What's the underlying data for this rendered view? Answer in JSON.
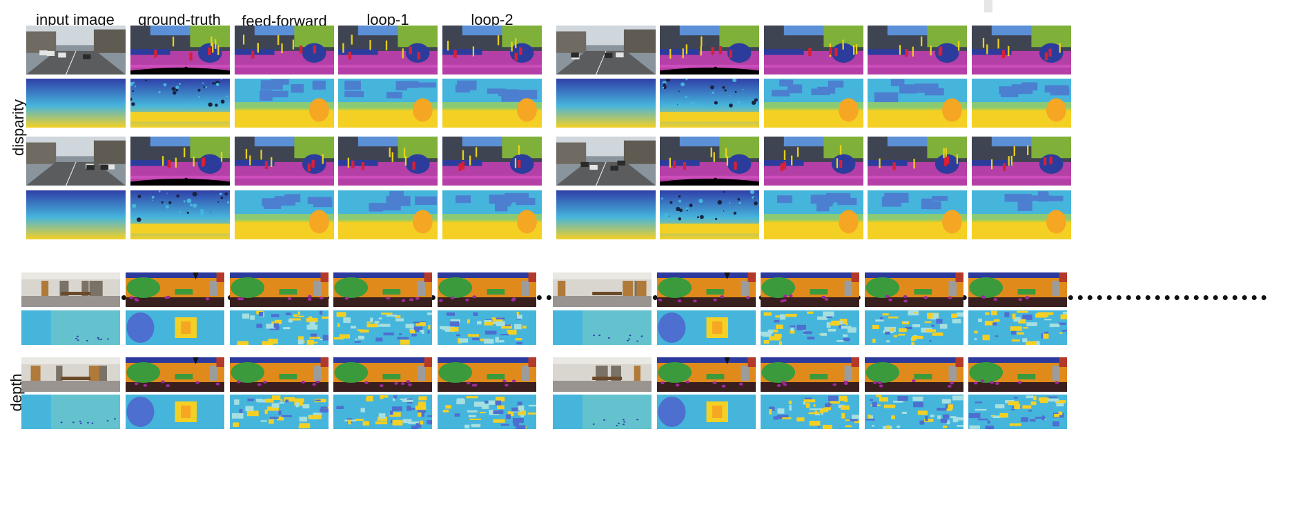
{
  "figure": {
    "top_columns": [
      "input image",
      "ground-truth",
      "feed-forward",
      "loop-1",
      "loop-2"
    ],
    "bottom_columns": [
      "input image",
      "ground-truth",
      "feed-forward",
      "loop-1",
      "loop-2"
    ],
    "top_row_label": "disparity",
    "bottom_row_label": "depth"
  },
  "palette": {
    "sky": "#5b8fd6",
    "vegetation": "#7fb03a",
    "road": "#b43fa6",
    "building": "#3f4452",
    "car": "#2c3c9c",
    "person": "#d82035",
    "sign": "#e8d11a",
    "sidewalk": "#e45bd0",
    "depth_far": "#2f3fa8",
    "depth_mid": "#46b5dc",
    "depth_near": "#f4d024",
    "depth_close": "#f5a623",
    "floor": "#3a1f1f",
    "ceiling": "#2b3a9c",
    "wall": "#e08a1c",
    "table": "#3a9a3c",
    "chair": "#9e2a9e",
    "door": "#9c9c9c",
    "board": "#2fa7a7"
  },
  "tile_kinds": {
    "street_rgb": "input-photo",
    "street_seg": "semantic-segmentation",
    "street_depth": "disparity-map",
    "indoor_rgb": "input-photo",
    "indoor_seg": "semantic-segmentation",
    "indoor_depth": "depth-map"
  }
}
